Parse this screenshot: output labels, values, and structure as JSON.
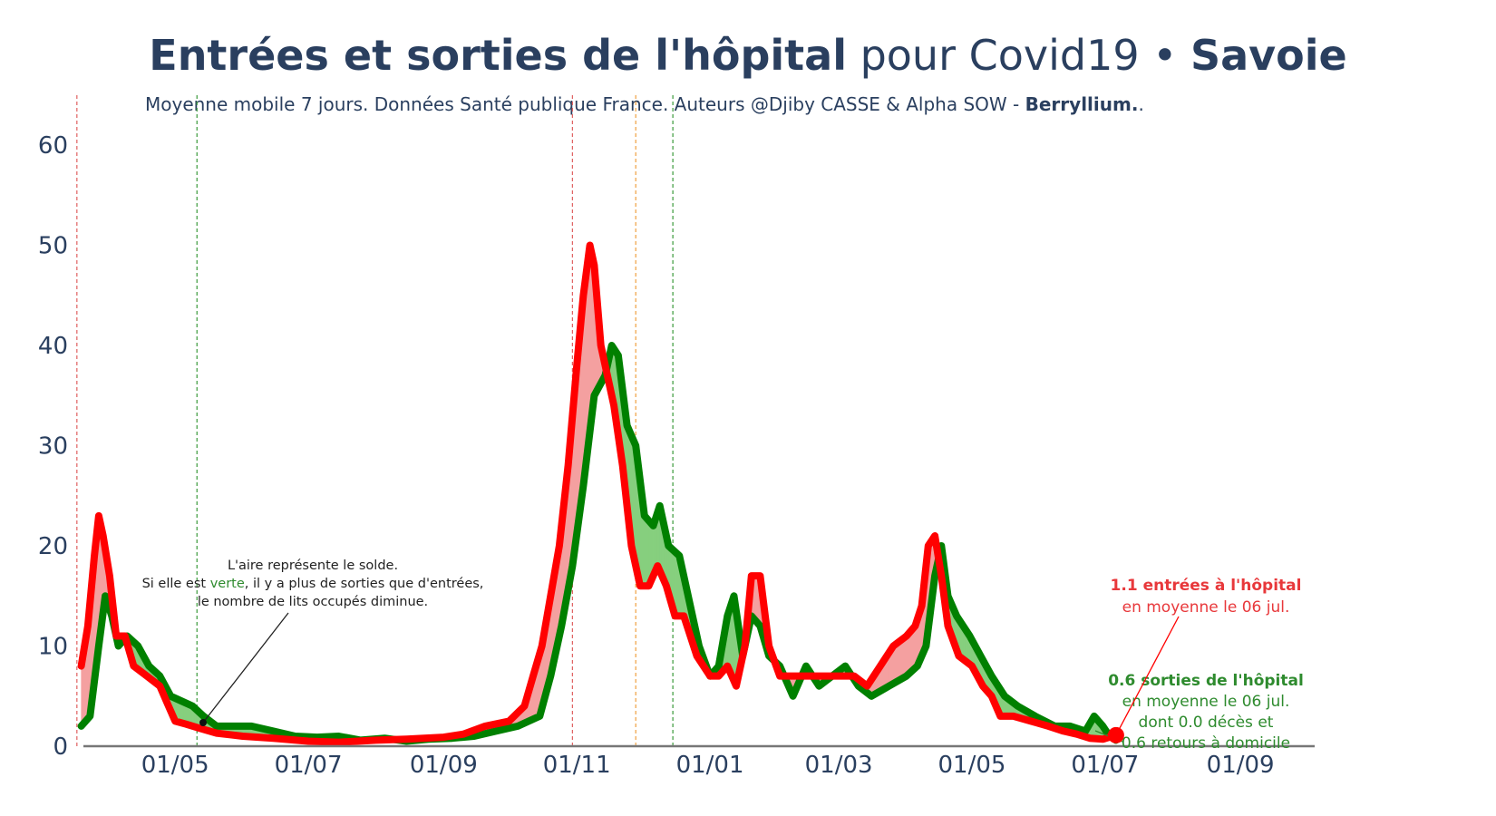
{
  "title": {
    "bold_part": "Entrées et sorties de l'hôpital",
    "normal_part": " pour Covid19 • ",
    "region": "Savoie"
  },
  "subtitle": {
    "text": "Moyenne mobile 7 jours. Données Santé publique France. Auteurs @Djiby CASSE & Alpha SOW - ",
    "brand": "Berryllium.",
    "suffix": "."
  },
  "colors": {
    "entrees": "#ff0000",
    "sorties": "#008000",
    "fill_red": "#f4a0a0",
    "fill_green": "#86cf7e",
    "text": "#2a3f5f",
    "vline_red": "#e06060",
    "vline_green": "#3a9a3a",
    "vline_orange": "#f0a040"
  },
  "annotations": {
    "solde_line1": "L'aire représente le solde.",
    "solde_line2_a": "Si elle est ",
    "solde_line2_green": "verte",
    "solde_line2_b": ", il y a plus de sorties que d'entrées,",
    "solde_line3": "le nombre de lits occupés diminue.",
    "entrees_value": "1.1 entrées à l'hôpital",
    "entrees_sub": "en moyenne le 06 jul.",
    "sorties_value": "0.6 sorties de l'hôpital",
    "sorties_sub1": "en moyenne le 06 jul.",
    "sorties_sub2": "dont 0.0 décès et",
    "sorties_sub3": "0.6 retours à domicile"
  },
  "chart_data": {
    "type": "line",
    "title": "Entrées et sorties de l'hôpital pour Covid19 • Savoie",
    "xlabel": "",
    "ylabel": "",
    "ylim": [
      0,
      65
    ],
    "yticks": [
      0,
      10,
      20,
      30,
      40,
      50,
      60
    ],
    "xlim": [
      "2020-03-15",
      "2021-10-05"
    ],
    "xticks": [
      {
        "date": "2020-05-01",
        "label": "01/05"
      },
      {
        "date": "2020-07-01",
        "label": "01/07"
      },
      {
        "date": "2020-09-01",
        "label": "01/09"
      },
      {
        "date": "2020-11-01",
        "label": "01/11"
      },
      {
        "date": "2021-01-01",
        "label": "01/01"
      },
      {
        "date": "2021-03-01",
        "label": "01/03"
      },
      {
        "date": "2021-05-01",
        "label": "01/05"
      },
      {
        "date": "2021-07-01",
        "label": "01/07"
      },
      {
        "date": "2021-09-01",
        "label": "01/09"
      }
    ],
    "vlines": [
      {
        "date": "2020-03-17",
        "color": "red"
      },
      {
        "date": "2020-05-11",
        "color": "green"
      },
      {
        "date": "2020-10-30",
        "color": "red"
      },
      {
        "date": "2020-11-28",
        "color": "orange"
      },
      {
        "date": "2020-12-15",
        "color": "green"
      }
    ],
    "series": [
      {
        "name": "Entrées",
        "points": [
          [
            "2020-03-19",
            8
          ],
          [
            "2020-03-22",
            12
          ],
          [
            "2020-03-25",
            19
          ],
          [
            "2020-03-27",
            23
          ],
          [
            "2020-03-29",
            21
          ],
          [
            "2020-04-01",
            17
          ],
          [
            "2020-04-04",
            11
          ],
          [
            "2020-04-08",
            11
          ],
          [
            "2020-04-12",
            8
          ],
          [
            "2020-04-18",
            7
          ],
          [
            "2020-04-24",
            6
          ],
          [
            "2020-04-28",
            4
          ],
          [
            "2020-05-01",
            2.5
          ],
          [
            "2020-05-06",
            2.2
          ],
          [
            "2020-05-12",
            1.8
          ],
          [
            "2020-05-20",
            1.3
          ],
          [
            "2020-06-01",
            1
          ],
          [
            "2020-06-15",
            0.8
          ],
          [
            "2020-07-01",
            0.5
          ],
          [
            "2020-07-15",
            0.4
          ],
          [
            "2020-08-01",
            0.6
          ],
          [
            "2020-08-15",
            0.7
          ],
          [
            "2020-09-01",
            0.9
          ],
          [
            "2020-09-10",
            1.2
          ],
          [
            "2020-09-20",
            2
          ],
          [
            "2020-10-01",
            2.5
          ],
          [
            "2020-10-08",
            4
          ],
          [
            "2020-10-12",
            7
          ],
          [
            "2020-10-16",
            10
          ],
          [
            "2020-10-20",
            15
          ],
          [
            "2020-10-24",
            20
          ],
          [
            "2020-10-28",
            28
          ],
          [
            "2020-11-01",
            38
          ],
          [
            "2020-11-04",
            45
          ],
          [
            "2020-11-07",
            50
          ],
          [
            "2020-11-09",
            48
          ],
          [
            "2020-11-12",
            40
          ],
          [
            "2020-11-15",
            37
          ],
          [
            "2020-11-18",
            34
          ],
          [
            "2020-11-22",
            28
          ],
          [
            "2020-11-26",
            20
          ],
          [
            "2020-11-30",
            16
          ],
          [
            "2020-12-04",
            16
          ],
          [
            "2020-12-08",
            18
          ],
          [
            "2020-12-12",
            16
          ],
          [
            "2020-12-16",
            13
          ],
          [
            "2020-12-20",
            13
          ],
          [
            "2020-12-26",
            9
          ],
          [
            "2021-01-01",
            7
          ],
          [
            "2021-01-05",
            7
          ],
          [
            "2021-01-09",
            8
          ],
          [
            "2021-01-13",
            6
          ],
          [
            "2021-01-17",
            10
          ],
          [
            "2021-01-20",
            17
          ],
          [
            "2021-01-24",
            17
          ],
          [
            "2021-01-28",
            10
          ],
          [
            "2021-02-02",
            7
          ],
          [
            "2021-02-08",
            7
          ],
          [
            "2021-02-14",
            7
          ],
          [
            "2021-02-22",
            7
          ],
          [
            "2021-03-01",
            7
          ],
          [
            "2021-03-08",
            7
          ],
          [
            "2021-03-14",
            6
          ],
          [
            "2021-03-20",
            8
          ],
          [
            "2021-03-26",
            10
          ],
          [
            "2021-04-01",
            11
          ],
          [
            "2021-04-05",
            12
          ],
          [
            "2021-04-08",
            14
          ],
          [
            "2021-04-11",
            20
          ],
          [
            "2021-04-14",
            21
          ],
          [
            "2021-04-17",
            17
          ],
          [
            "2021-04-20",
            12
          ],
          [
            "2021-04-25",
            9
          ],
          [
            "2021-05-01",
            8
          ],
          [
            "2021-05-06",
            6
          ],
          [
            "2021-05-10",
            5
          ],
          [
            "2021-05-14",
            3
          ],
          [
            "2021-05-20",
            3
          ],
          [
            "2021-05-28",
            2.5
          ],
          [
            "2021-06-05",
            2
          ],
          [
            "2021-06-12",
            1.5
          ],
          [
            "2021-06-18",
            1.2
          ],
          [
            "2021-06-24",
            0.8
          ],
          [
            "2021-06-30",
            0.7
          ],
          [
            "2021-07-06",
            1.1
          ]
        ]
      },
      {
        "name": "Sorties",
        "points": [
          [
            "2020-03-19",
            2
          ],
          [
            "2020-03-23",
            3
          ],
          [
            "2020-03-27",
            10
          ],
          [
            "2020-03-30",
            15
          ],
          [
            "2020-04-02",
            13
          ],
          [
            "2020-04-05",
            10
          ],
          [
            "2020-04-09",
            11
          ],
          [
            "2020-04-14",
            10
          ],
          [
            "2020-04-19",
            8
          ],
          [
            "2020-04-24",
            7
          ],
          [
            "2020-04-29",
            5
          ],
          [
            "2020-05-04",
            4.5
          ],
          [
            "2020-05-09",
            4
          ],
          [
            "2020-05-14",
            3
          ],
          [
            "2020-05-20",
            2
          ],
          [
            "2020-05-28",
            2
          ],
          [
            "2020-06-05",
            2
          ],
          [
            "2020-06-15",
            1.5
          ],
          [
            "2020-06-25",
            1
          ],
          [
            "2020-07-05",
            0.9
          ],
          [
            "2020-07-15",
            1
          ],
          [
            "2020-07-25",
            0.6
          ],
          [
            "2020-08-05",
            0.8
          ],
          [
            "2020-08-15",
            0.5
          ],
          [
            "2020-08-25",
            0.7
          ],
          [
            "2020-09-05",
            0.8
          ],
          [
            "2020-09-15",
            1
          ],
          [
            "2020-09-25",
            1.5
          ],
          [
            "2020-10-05",
            2
          ],
          [
            "2020-10-10",
            2.5
          ],
          [
            "2020-10-15",
            3
          ],
          [
            "2020-10-20",
            7
          ],
          [
            "2020-10-25",
            12
          ],
          [
            "2020-10-30",
            18
          ],
          [
            "2020-11-04",
            26
          ],
          [
            "2020-11-09",
            35
          ],
          [
            "2020-11-14",
            37
          ],
          [
            "2020-11-17",
            40
          ],
          [
            "2020-11-20",
            39
          ],
          [
            "2020-11-24",
            32
          ],
          [
            "2020-11-28",
            30
          ],
          [
            "2020-12-02",
            23
          ],
          [
            "2020-12-06",
            22
          ],
          [
            "2020-12-09",
            24
          ],
          [
            "2020-12-13",
            20
          ],
          [
            "2020-12-18",
            19
          ],
          [
            "2020-12-22",
            15
          ],
          [
            "2020-12-27",
            10
          ],
          [
            "2021-01-01",
            7
          ],
          [
            "2021-01-05",
            8
          ],
          [
            "2021-01-09",
            13
          ],
          [
            "2021-01-12",
            15
          ],
          [
            "2021-01-16",
            9
          ],
          [
            "2021-01-20",
            13
          ],
          [
            "2021-01-24",
            12
          ],
          [
            "2021-01-28",
            9
          ],
          [
            "2021-02-02",
            8
          ],
          [
            "2021-02-08",
            5
          ],
          [
            "2021-02-14",
            8
          ],
          [
            "2021-02-20",
            6
          ],
          [
            "2021-02-26",
            7
          ],
          [
            "2021-03-04",
            8
          ],
          [
            "2021-03-10",
            6
          ],
          [
            "2021-03-16",
            5
          ],
          [
            "2021-03-24",
            6
          ],
          [
            "2021-04-01",
            7
          ],
          [
            "2021-04-06",
            8
          ],
          [
            "2021-04-10",
            10
          ],
          [
            "2021-04-14",
            17
          ],
          [
            "2021-04-17",
            20
          ],
          [
            "2021-04-20",
            15
          ],
          [
            "2021-04-24",
            13
          ],
          [
            "2021-04-30",
            11
          ],
          [
            "2021-05-05",
            9
          ],
          [
            "2021-05-10",
            7
          ],
          [
            "2021-05-16",
            5
          ],
          [
            "2021-05-22",
            4
          ],
          [
            "2021-05-30",
            3
          ],
          [
            "2021-06-08",
            2
          ],
          [
            "2021-06-15",
            2
          ],
          [
            "2021-06-22",
            1.5
          ],
          [
            "2021-06-26",
            3
          ],
          [
            "2021-06-30",
            2
          ],
          [
            "2021-07-03",
            1
          ],
          [
            "2021-07-06",
            0.6
          ]
        ]
      }
    ]
  }
}
